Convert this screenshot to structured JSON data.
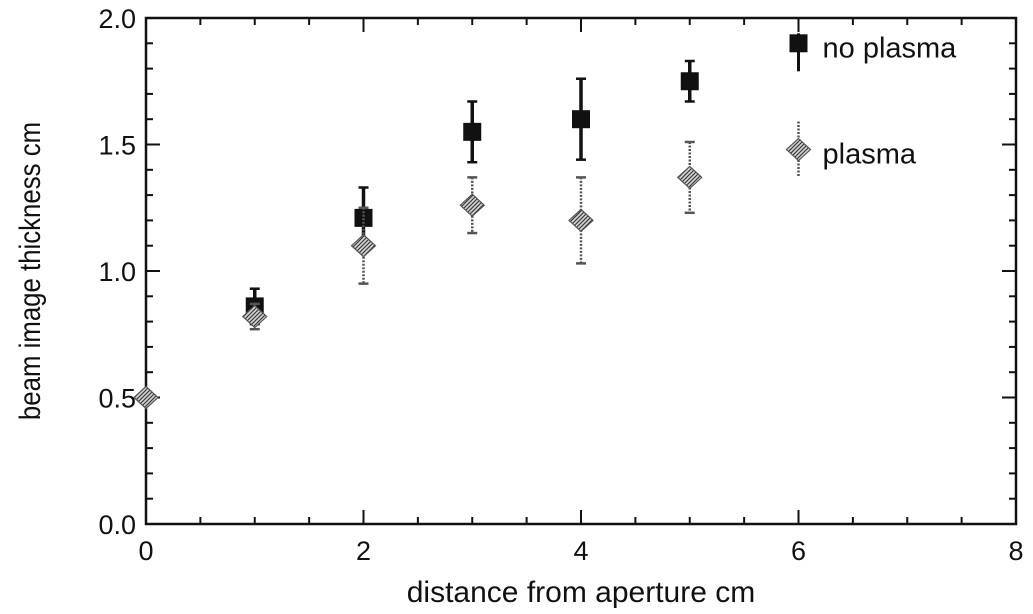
{
  "chart_data": {
    "type": "scatter",
    "title": "",
    "xlabel": "distance from aperture cm",
    "ylabel": "beam image thickness cm",
    "xlim": [
      0,
      8
    ],
    "ylim": [
      0.0,
      2.0
    ],
    "x_ticks": [
      "0",
      "2",
      "4",
      "6",
      "8"
    ],
    "y_ticks": [
      "0.0",
      "0.5",
      "1.0",
      "1.5",
      "2.0"
    ],
    "grid": false,
    "legend_position": "top-right",
    "error_bars": true,
    "series": [
      {
        "name": "no plasma",
        "marker": "square",
        "color": "#111111",
        "points": [
          {
            "x": 1,
            "y": 0.86,
            "err_low": 0.79,
            "err_high": 0.93
          },
          {
            "x": 2,
            "y": 1.21,
            "err_low": 1.09,
            "err_high": 1.33
          },
          {
            "x": 3,
            "y": 1.55,
            "err_low": 1.43,
            "err_high": 1.67
          },
          {
            "x": 4,
            "y": 1.6,
            "err_low": 1.44,
            "err_high": 1.76
          },
          {
            "x": 5,
            "y": 1.75,
            "err_low": 1.67,
            "err_high": 1.83
          }
        ]
      },
      {
        "name": "plasma",
        "marker": "diamond",
        "color": "#8a8a8a",
        "points": [
          {
            "x": 0,
            "y": 0.5,
            "err_low": 0.5,
            "err_high": 0.5
          },
          {
            "x": 1,
            "y": 0.82,
            "err_low": 0.77,
            "err_high": 0.87
          },
          {
            "x": 2,
            "y": 1.1,
            "err_low": 0.95,
            "err_high": 1.25
          },
          {
            "x": 3,
            "y": 1.26,
            "err_low": 1.15,
            "err_high": 1.37
          },
          {
            "x": 4,
            "y": 1.2,
            "err_low": 1.03,
            "err_high": 1.37
          },
          {
            "x": 5,
            "y": 1.37,
            "err_low": 1.23,
            "err_high": 1.51
          }
        ]
      }
    ]
  }
}
